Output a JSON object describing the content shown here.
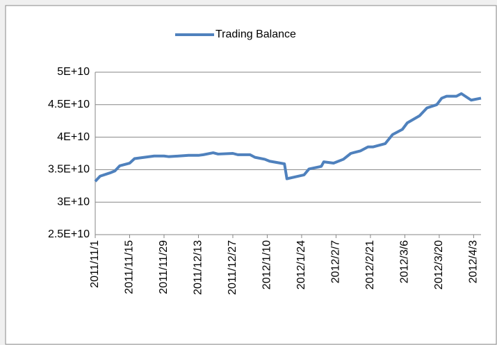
{
  "chart_data": {
    "type": "line",
    "x": [
      "2011/11/1",
      "2011/11/3",
      "2011/11/7",
      "2011/11/9",
      "2011/11/11",
      "2011/11/15",
      "2011/11/17",
      "2011/11/21",
      "2011/11/25",
      "2011/11/29",
      "2011/12/1",
      "2011/12/5",
      "2011/12/9",
      "2011/12/13",
      "2011/12/15",
      "2011/12/19",
      "2011/12/21",
      "2011/12/27",
      "2011/12/29",
      "2012/1/3",
      "2012/1/5",
      "2012/1/9",
      "2012/1/11",
      "2012/1/17",
      "2012/1/18",
      "2012/1/25",
      "2012/1/27",
      "2012/2/1",
      "2012/2/2",
      "2012/2/6",
      "2012/2/10",
      "2012/2/13",
      "2012/2/17",
      "2012/2/20",
      "2012/2/22",
      "2012/2/27",
      "2012/3/1",
      "2012/3/5",
      "2012/3/7",
      "2012/3/12",
      "2012/3/15",
      "2012/3/19",
      "2012/3/21",
      "2012/3/23",
      "2012/3/27",
      "2012/3/29",
      "2012/4/2",
      "2012/4/6"
    ],
    "series": [
      {
        "name": "Trading Balance",
        "color": "#4f81bd",
        "values": [
          33200000000,
          34000000000,
          34500000000,
          34800000000,
          35600000000,
          36000000000,
          36700000000,
          36900000000,
          37100000000,
          37100000000,
          37000000000,
          37100000000,
          37200000000,
          37200000000,
          37300000000,
          37600000000,
          37400000000,
          37500000000,
          37300000000,
          37300000000,
          36900000000,
          36600000000,
          36300000000,
          35900000000,
          33600000000,
          34200000000,
          35100000000,
          35500000000,
          36200000000,
          36000000000,
          36600000000,
          37500000000,
          37900000000,
          38500000000,
          38500000000,
          39000000000,
          40400000000,
          41200000000,
          42200000000,
          43300000000,
          44500000000,
          45000000000,
          46000000000,
          46300000000,
          46300000000,
          46700000000,
          45700000000,
          46000000000
        ]
      }
    ],
    "xlim": [
      "2011/11/1",
      "2012/4/6"
    ],
    "xticks": [
      "2011/11/1",
      "2011/11/15",
      "2011/11/29",
      "2011/12/13",
      "2011/12/27",
      "2012/1/10",
      "2012/1/24",
      "2012/2/7",
      "2012/2/21",
      "2012/3/6",
      "2012/3/20",
      "2012/4/3"
    ],
    "ylim": [
      25000000000,
      50000000000
    ],
    "yticks": [
      {
        "value": 25000000000,
        "label": "2.5E+10"
      },
      {
        "value": 30000000000,
        "label": "3E+10"
      },
      {
        "value": 35000000000,
        "label": "3.5E+10"
      },
      {
        "value": 40000000000,
        "label": "4E+10"
      },
      {
        "value": 45000000000,
        "label": "4.5E+10"
      },
      {
        "value": 50000000000,
        "label": "5E+10"
      }
    ],
    "grid": true,
    "legend": "top"
  }
}
